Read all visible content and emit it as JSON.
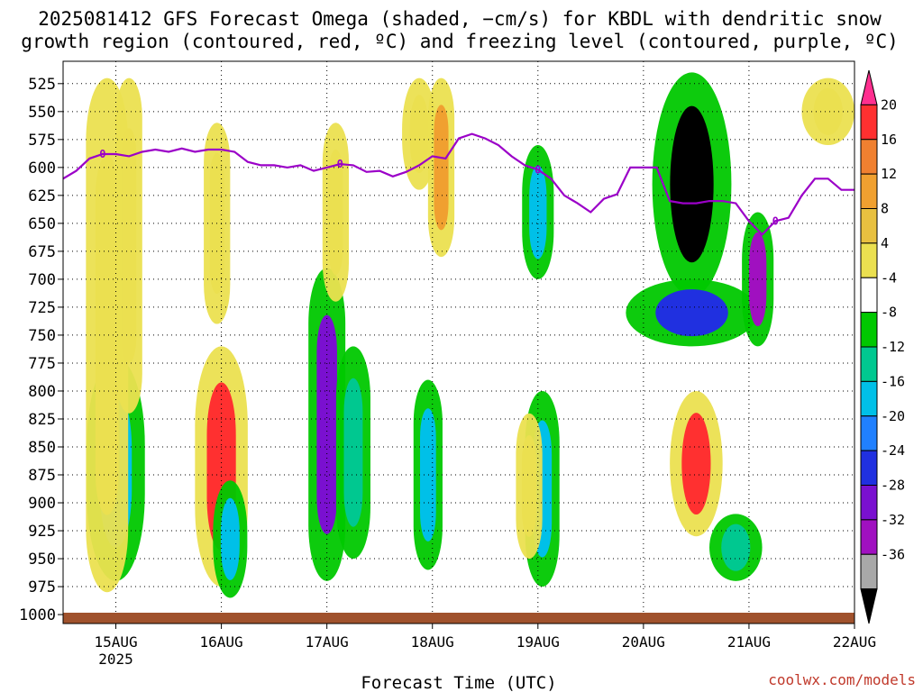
{
  "chart_data": {
    "type": "heatmap",
    "title": [
      "2025081412 GFS Forecast Omega (shaded, −cm/s) for KBDL with dendritic snow",
      "growth region (contoured, red, ºC) and freezing level (contoured, purple, ºC)"
    ],
    "xlabel": "Forecast Time (UTC)",
    "x_ticks": [
      {
        "label": "15AUG",
        "sub": "2025",
        "t": 0
      },
      {
        "label": "16AUG",
        "sub": "",
        "t": 24
      },
      {
        "label": "17AUG",
        "sub": "",
        "t": 48
      },
      {
        "label": "18AUG",
        "sub": "",
        "t": 72
      },
      {
        "label": "19AUG",
        "sub": "",
        "t": 96
      },
      {
        "label": "20AUG",
        "sub": "",
        "t": 120
      },
      {
        "label": "21AUG",
        "sub": "",
        "t": 144
      },
      {
        "label": "22AUG",
        "sub": "",
        "t": 168
      }
    ],
    "xlim": [
      -12,
      168
    ],
    "ylabel": "",
    "y_ticks": [
      525,
      550,
      575,
      600,
      625,
      650,
      675,
      700,
      725,
      750,
      775,
      800,
      825,
      850,
      875,
      900,
      925,
      950,
      975,
      1000
    ],
    "ylim": [
      1008,
      505
    ],
    "grid": true,
    "colorbar": {
      "labels": [
        "20",
        "16",
        "12",
        "8",
        "4",
        "-4",
        "-8",
        "-12",
        "-16",
        "-20",
        "-24",
        "-28",
        "-32",
        "-36"
      ],
      "colors": [
        "#ff2f8f",
        "#ff3030",
        "#f08030",
        "#f0a030",
        "#e8c040",
        "#ebe050",
        "#ffffff",
        "#00c800",
        "#00c890",
        "#00c0e8",
        "#2080ff",
        "#2030e0",
        "#7a10d0",
        "#a010c0",
        "#a8a8a8",
        "#000000"
      ]
    },
    "omega_features": [
      {
        "t": 0,
        "p_top": 770,
        "p_bot": 970,
        "w": 2.2,
        "v": -14
      },
      {
        "t": -2,
        "p_top": 520,
        "p_bot": 980,
        "w": 1.6,
        "v": 5
      },
      {
        "t": 3,
        "p_top": 520,
        "p_bot": 820,
        "w": 1.0,
        "v": 5
      },
      {
        "t": 24,
        "p_top": 760,
        "p_bot": 975,
        "w": 2.0,
        "v": 17
      },
      {
        "t": 26,
        "p_top": 880,
        "p_bot": 985,
        "w": 1.3,
        "v": -12
      },
      {
        "t": 23,
        "p_top": 560,
        "p_bot": 740,
        "w": 1.0,
        "v": 5
      },
      {
        "t": 48,
        "p_top": 690,
        "p_bot": 970,
        "w": 1.4,
        "v": -26
      },
      {
        "t": 50,
        "p_top": 560,
        "p_bot": 720,
        "w": 1.0,
        "v": 5
      },
      {
        "t": 54,
        "p_top": 760,
        "p_bot": 950,
        "w": 1.3,
        "v": -9
      },
      {
        "t": 71,
        "p_top": 790,
        "p_bot": 960,
        "w": 1.1,
        "v": -13
      },
      {
        "t": 69,
        "p_top": 520,
        "p_bot": 620,
        "w": 1.3,
        "v": 6
      },
      {
        "t": 74,
        "p_top": 520,
        "p_bot": 680,
        "w": 1.0,
        "v": 8
      },
      {
        "t": 96,
        "p_top": 580,
        "p_bot": 700,
        "w": 1.2,
        "v": -14
      },
      {
        "t": 97,
        "p_top": 800,
        "p_bot": 975,
        "w": 1.3,
        "v": -12
      },
      {
        "t": 94,
        "p_top": 820,
        "p_bot": 950,
        "w": 1.0,
        "v": 5
      },
      {
        "t": 131,
        "p_top": 515,
        "p_bot": 715,
        "w": 3.0,
        "v": -40
      },
      {
        "t": 131,
        "p_top": 700,
        "p_bot": 760,
        "w": 5.0,
        "v": -22
      },
      {
        "t": 132,
        "p_top": 800,
        "p_bot": 930,
        "w": 2.0,
        "v": 16
      },
      {
        "t": 146,
        "p_top": 640,
        "p_bot": 760,
        "w": 1.2,
        "v": -28
      },
      {
        "t": 141,
        "p_top": 910,
        "p_bot": 970,
        "w": 2.0,
        "v": -9
      },
      {
        "t": 162,
        "p_top": 520,
        "p_bot": 580,
        "w": 2.0,
        "v": 5
      }
    ],
    "freezing_level": {
      "label": "0",
      "points": [
        [
          -12,
          610
        ],
        [
          -9,
          603
        ],
        [
          -6,
          592
        ],
        [
          -3,
          588
        ],
        [
          0,
          588
        ],
        [
          3,
          590
        ],
        [
          6,
          586
        ],
        [
          9,
          584
        ],
        [
          12,
          586
        ],
        [
          15,
          583
        ],
        [
          18,
          586
        ],
        [
          21,
          584
        ],
        [
          24,
          584
        ],
        [
          27,
          586
        ],
        [
          30,
          595
        ],
        [
          33,
          598
        ],
        [
          36,
          598
        ],
        [
          39,
          600
        ],
        [
          42,
          598
        ],
        [
          45,
          603
        ],
        [
          48,
          600
        ],
        [
          51,
          597
        ],
        [
          54,
          598
        ],
        [
          57,
          604
        ],
        [
          60,
          603
        ],
        [
          63,
          608
        ],
        [
          66,
          604
        ],
        [
          69,
          598
        ],
        [
          72,
          590
        ],
        [
          75,
          592
        ],
        [
          78,
          574
        ],
        [
          81,
          570
        ],
        [
          84,
          574
        ],
        [
          87,
          580
        ],
        [
          90,
          590
        ],
        [
          93,
          598
        ],
        [
          96,
          602
        ],
        [
          99,
          610
        ],
        [
          102,
          625
        ],
        [
          105,
          632
        ],
        [
          108,
          640
        ],
        [
          111,
          628
        ],
        [
          114,
          624
        ],
        [
          117,
          600
        ],
        [
          120,
          600
        ],
        [
          123,
          600
        ],
        [
          126,
          630
        ],
        [
          129,
          632
        ],
        [
          132,
          632
        ],
        [
          135,
          630
        ],
        [
          138,
          630
        ],
        [
          141,
          632
        ],
        [
          144,
          648
        ],
        [
          147,
          660
        ],
        [
          150,
          648
        ],
        [
          153,
          645
        ],
        [
          156,
          625
        ],
        [
          159,
          610
        ],
        [
          162,
          610
        ],
        [
          165,
          620
        ],
        [
          168,
          620
        ]
      ]
    },
    "credit": "coolwx.com/models"
  }
}
